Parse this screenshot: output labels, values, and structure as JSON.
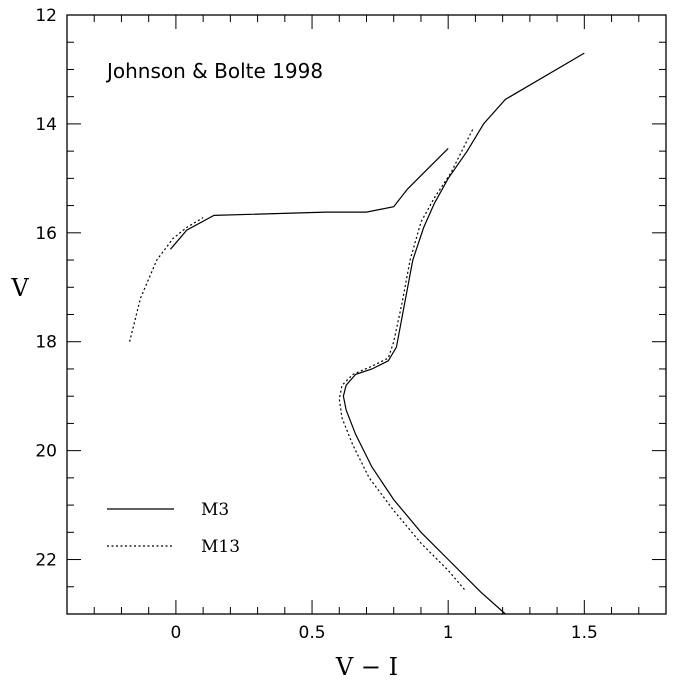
{
  "chart_data": {
    "type": "line",
    "title": "",
    "annotation": "Johnson & Bolte 1998",
    "xlabel": "V − I",
    "ylabel": "V",
    "xlim": [
      -0.4,
      1.8
    ],
    "ylim": [
      23,
      12
    ],
    "y_inverted": true,
    "x_ticks": [
      0,
      0.5,
      1,
      1.5
    ],
    "x_tick_labels": [
      "0",
      "0.5",
      "1",
      "1.5"
    ],
    "y_ticks": [
      12,
      14,
      16,
      18,
      20,
      22
    ],
    "y_tick_labels": [
      "12",
      "14",
      "16",
      "18",
      "20",
      "22"
    ],
    "grid": false,
    "legend_position": "bottom-left",
    "series": [
      {
        "name": "M3",
        "style": "solid",
        "segments": [
          [
            [
              1.21,
              23.0
            ],
            [
              1.12,
              22.6
            ],
            [
              1.0,
              22.0
            ],
            [
              0.9,
              21.5
            ],
            [
              0.8,
              20.9
            ],
            [
              0.72,
              20.3
            ],
            [
              0.66,
              19.7
            ],
            [
              0.625,
              19.25
            ],
            [
              0.615,
              19.0
            ],
            [
              0.625,
              18.8
            ],
            [
              0.66,
              18.6
            ],
            [
              0.72,
              18.5
            ],
            [
              0.78,
              18.35
            ],
            [
              0.81,
              18.1
            ],
            [
              0.84,
              17.3
            ],
            [
              0.87,
              16.5
            ],
            [
              0.91,
              15.9
            ],
            [
              0.95,
              15.45
            ],
            [
              1.0,
              15.0
            ],
            [
              1.07,
              14.5
            ],
            [
              1.13,
              14.0
            ],
            [
              1.21,
              13.55
            ],
            [
              1.5,
              12.7
            ]
          ],
          [
            [
              -0.02,
              16.3
            ],
            [
              0.04,
              15.95
            ],
            [
              0.14,
              15.68
            ],
            [
              0.55,
              15.62
            ],
            [
              0.7,
              15.62
            ],
            [
              0.8,
              15.52
            ],
            [
              0.85,
              15.2
            ],
            [
              0.92,
              14.85
            ],
            [
              1.0,
              14.45
            ]
          ]
        ]
      },
      {
        "name": "M13",
        "style": "dotted",
        "segments": [
          [
            [
              1.06,
              22.55
            ],
            [
              1.0,
              22.2
            ],
            [
              0.9,
              21.7
            ],
            [
              0.8,
              21.1
            ],
            [
              0.71,
              20.5
            ],
            [
              0.65,
              19.9
            ],
            [
              0.61,
              19.4
            ],
            [
              0.6,
              19.05
            ],
            [
              0.61,
              18.8
            ],
            [
              0.65,
              18.6
            ],
            [
              0.72,
              18.45
            ],
            [
              0.78,
              18.3
            ],
            [
              0.8,
              18.0
            ],
            [
              0.83,
              17.3
            ],
            [
              0.86,
              16.5
            ],
            [
              0.9,
              15.8
            ],
            [
              0.95,
              15.35
            ],
            [
              1.01,
              14.9
            ],
            [
              1.05,
              14.5
            ],
            [
              1.09,
              14.1
            ]
          ],
          [
            [
              -0.17,
              18.0
            ],
            [
              -0.13,
              17.2
            ],
            [
              -0.07,
              16.5
            ],
            [
              -0.01,
              16.1
            ],
            [
              0.04,
              15.9
            ],
            [
              0.1,
              15.72
            ]
          ]
        ]
      }
    ]
  }
}
